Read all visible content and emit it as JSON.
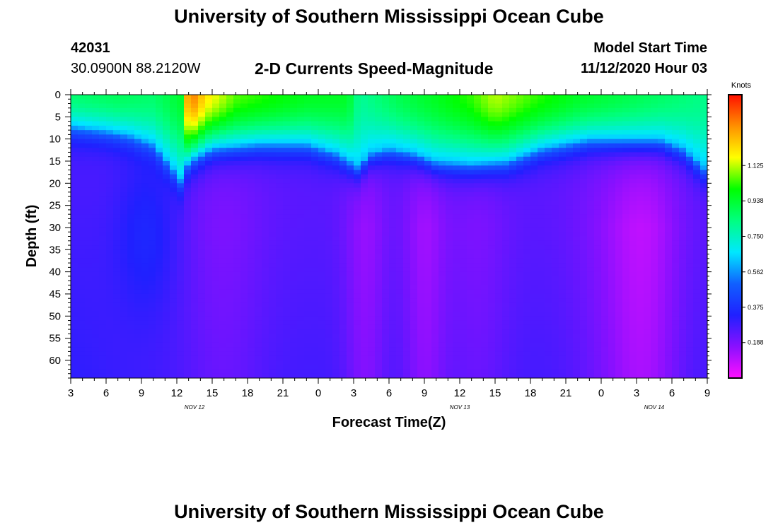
{
  "header": {
    "title": "University of Southern Mississippi Ocean Cube",
    "station_id": "42031",
    "location": "30.0900N 88.2120W",
    "subtitle": "2-D Currents Speed-Magnitude",
    "model_label": "Model Start Time",
    "model_time": "11/12/2020 Hour 03"
  },
  "footer": {
    "title": "University of Southern Mississippi Ocean Cube"
  },
  "chart_data": {
    "type": "heatmap",
    "title": "2-D Currents Speed-Magnitude",
    "xlabel": "Forecast Time(Z)",
    "ylabel": "Depth (ft)",
    "x_tick_labels": [
      "3",
      "6",
      "9",
      "12",
      "15",
      "18",
      "21",
      "0",
      "3",
      "6",
      "9",
      "12",
      "15",
      "18",
      "21",
      "0",
      "3",
      "6",
      "9"
    ],
    "x_hours_range": [
      0,
      54
    ],
    "date_labels": [
      {
        "label": "NOV 12",
        "hour": 10.5
      },
      {
        "label": "NOV 13",
        "hour": 33
      },
      {
        "label": "NOV 14",
        "hour": 49.5
      }
    ],
    "y_ticks": [
      0,
      5,
      10,
      15,
      20,
      25,
      30,
      35,
      40,
      45,
      50,
      55,
      60
    ],
    "y_range": [
      0,
      64
    ],
    "colorbar": {
      "title": "Knots",
      "ticks": [
        "1.125",
        "0.938",
        "0.750",
        "0.562",
        "0.375",
        "0.188"
      ],
      "tick_values": [
        1.125,
        0.938,
        0.75,
        0.562,
        0.375,
        0.188
      ],
      "range": [
        0,
        1.5
      ],
      "stops": [
        "#ff10ff",
        "#8a10ff",
        "#2020ff",
        "#1060ff",
        "#00e8ff",
        "#00ff80",
        "#00ff00",
        "#ffff00",
        "#ff9000",
        "#ff1000"
      ]
    },
    "surface_speed_knots": [
      {
        "hour": 0,
        "value": 0.85
      },
      {
        "hour": 4,
        "value": 0.88
      },
      {
        "hour": 7,
        "value": 0.86
      },
      {
        "hour": 9.6,
        "value": 0.95
      },
      {
        "hour": 10,
        "value": 1.4
      },
      {
        "hour": 11.5,
        "value": 1.2
      },
      {
        "hour": 14,
        "value": 1.05
      },
      {
        "hour": 20,
        "value": 0.96
      },
      {
        "hour": 23.5,
        "value": 0.95
      },
      {
        "hour": 24.5,
        "value": 0.8
      },
      {
        "hour": 28,
        "value": 0.9
      },
      {
        "hour": 31,
        "value": 0.96
      },
      {
        "hour": 34,
        "value": 1.03
      },
      {
        "hour": 36,
        "value": 1.12
      },
      {
        "hour": 39,
        "value": 1.04
      },
      {
        "hour": 43,
        "value": 0.95
      },
      {
        "hour": 54,
        "value": 0.82
      }
    ],
    "mixed_layer_depth_ft": [
      {
        "hour": 0,
        "value": 7
      },
      {
        "hour": 3,
        "value": 8
      },
      {
        "hour": 5,
        "value": 9
      },
      {
        "hour": 7,
        "value": 11
      },
      {
        "hour": 8.5,
        "value": 16
      },
      {
        "hour": 9.3,
        "value": 19
      },
      {
        "hour": 10,
        "value": 15
      },
      {
        "hour": 12,
        "value": 12
      },
      {
        "hour": 16,
        "value": 11
      },
      {
        "hour": 20,
        "value": 11
      },
      {
        "hour": 22.5,
        "value": 13
      },
      {
        "hour": 24.3,
        "value": 16
      },
      {
        "hour": 25.5,
        "value": 13
      },
      {
        "hour": 27,
        "value": 12
      },
      {
        "hour": 29,
        "value": 13
      },
      {
        "hour": 31,
        "value": 15
      },
      {
        "hour": 34,
        "value": 15.5
      },
      {
        "hour": 37,
        "value": 15
      },
      {
        "hour": 40,
        "value": 12
      },
      {
        "hour": 44,
        "value": 10
      },
      {
        "hour": 50,
        "value": 10
      },
      {
        "hour": 52,
        "value": 12
      },
      {
        "hour": 54,
        "value": 17
      }
    ]
  }
}
